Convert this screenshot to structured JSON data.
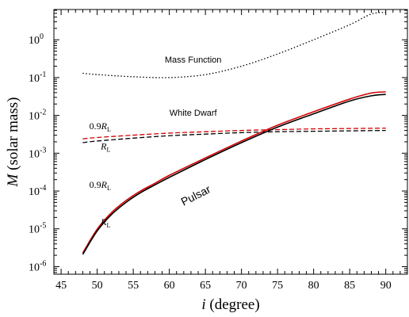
{
  "chart_data": {
    "type": "line",
    "xlabel": {
      "italic": "i",
      "rest": " (degree)"
    },
    "ylabel": {
      "italic": "M",
      "rest": " (solar mass)"
    },
    "xlim": [
      44,
      93
    ],
    "ylim_log10": [
      -6.2,
      0.8
    ],
    "y_scale": "log",
    "grid": false,
    "x_ticks": [
      45,
      50,
      55,
      60,
      65,
      70,
      75,
      80,
      85,
      90
    ],
    "y_ticks": [
      {
        "exp": -6,
        "base": "10",
        "sup": "-6"
      },
      {
        "exp": -5,
        "base": "10",
        "sup": "-5"
      },
      {
        "exp": -4,
        "base": "10",
        "sup": "-4"
      },
      {
        "exp": -3,
        "base": "10",
        "sup": "-3"
      },
      {
        "exp": -2,
        "base": "10",
        "sup": "-2"
      },
      {
        "exp": -1,
        "base": "10",
        "sup": "-1"
      },
      {
        "exp": 0,
        "base": "10",
        "sup": "0"
      }
    ],
    "series": [
      {
        "key": "mass-function",
        "color": "#000000",
        "dash": "dotted",
        "x": [
          48,
          50,
          55,
          60,
          65,
          70,
          75,
          80,
          85,
          88,
          90
        ],
        "y": [
          0.13,
          0.12,
          0.105,
          0.1,
          0.12,
          0.2,
          0.42,
          1.0,
          2.5,
          4.8,
          5.3
        ]
      },
      {
        "key": "wd-09rl",
        "color": "#d40000",
        "dash": "dashed",
        "x": [
          48,
          50,
          55,
          60,
          65,
          70,
          75,
          80,
          85,
          90
        ],
        "y": [
          0.0024,
          0.0026,
          0.003,
          0.0034,
          0.0037,
          0.004,
          0.0042,
          0.0044,
          0.0045,
          0.0046
        ]
      },
      {
        "key": "wd-rl",
        "color": "#000000",
        "dash": "dashed",
        "x": [
          48,
          50,
          55,
          60,
          65,
          70,
          75,
          80,
          85,
          90
        ],
        "y": [
          0.0019,
          0.0021,
          0.0025,
          0.0029,
          0.0032,
          0.0035,
          0.0037,
          0.0038,
          0.0039,
          0.004
        ]
      },
      {
        "key": "pulsar-09rl",
        "color": "#d40000",
        "dash": "solid",
        "x": [
          48,
          50,
          52,
          54,
          56,
          58,
          60,
          65,
          70,
          75,
          80,
          85,
          88,
          90
        ],
        "y": [
          2.3e-06,
          9.8e-06,
          2.7e-05,
          5.6e-05,
          0.0001,
          0.00016,
          0.00026,
          0.00075,
          0.0021,
          0.0055,
          0.0125,
          0.027,
          0.039,
          0.042
        ]
      },
      {
        "key": "pulsar-rl",
        "color": "#000000",
        "dash": "solid",
        "x": [
          48,
          50,
          52,
          54,
          56,
          58,
          60,
          65,
          70,
          75,
          80,
          85,
          88,
          90
        ],
        "y": [
          2.1e-06,
          8.8e-06,
          2.4e-05,
          5e-05,
          9e-05,
          0.000145,
          0.00023,
          0.00068,
          0.0019,
          0.0049,
          0.011,
          0.024,
          0.033,
          0.036
        ]
      }
    ],
    "annotations": [
      {
        "key": "mass-function",
        "text": "Mass Function",
        "style": "sans",
        "x": 63.3,
        "y": 0.25
      },
      {
        "key": "white-dwarf",
        "text": "White Dwarf",
        "style": "sans",
        "x": 63.3,
        "y": 0.0099
      },
      {
        "key": "wd-09rl",
        "text": "0.9",
        "sub_main": "R",
        "sub": "L",
        "style": "serif",
        "x": 48.9,
        "y": 0.0043
      },
      {
        "key": "wd-rl",
        "text": "",
        "sub_main": "R",
        "sub": "L",
        "style": "serif",
        "x": 50.5,
        "y": 0.00125
      },
      {
        "key": "pulsar",
        "text": "Pulsar",
        "style": "pulsar",
        "x": 63.9,
        "y": 6.2e-05,
        "rotate": -27
      },
      {
        "key": "pulsar-09rl",
        "text": "0.9",
        "sub_main": "R",
        "sub": "L",
        "style": "serif",
        "x": 48.9,
        "y": 0.000122
      },
      {
        "key": "pulsar-rl",
        "text": "",
        "sub_main": "R",
        "sub": "L",
        "style": "serif",
        "x": 50.5,
        "y": 1.25e-05
      }
    ]
  }
}
